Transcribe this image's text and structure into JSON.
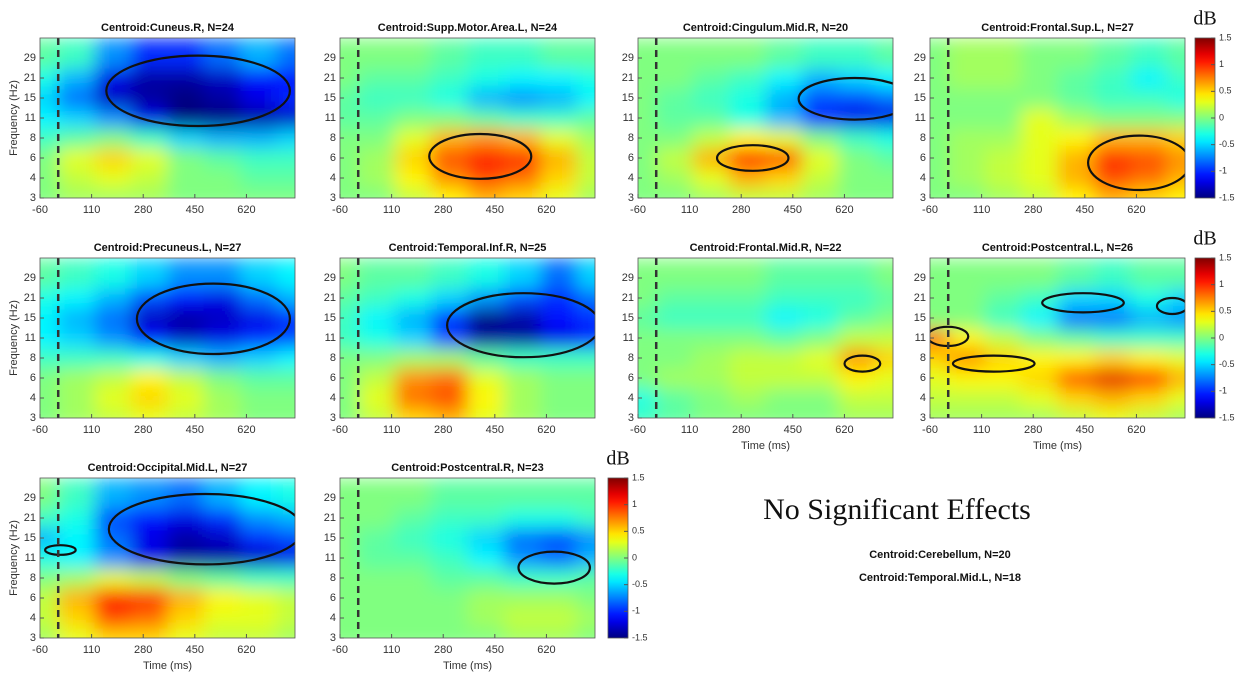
{
  "chart_data": [
    {
      "type": "heatmap",
      "title": "Centroid:Cuneus.R, N=24",
      "ylabel": "Frequency (Hz)",
      "x": [
        -60,
        60,
        180,
        300,
        420,
        540,
        660,
        780
      ],
      "y": [
        3,
        4,
        6,
        8,
        11,
        15,
        21,
        29
      ],
      "xlim": [
        -60,
        780
      ],
      "xticks": [
        -60,
        110,
        280,
        450,
        620
      ],
      "values": [
        [
          0,
          0.1,
          0.1,
          0.1,
          0,
          0,
          0,
          0
        ],
        [
          0,
          0.2,
          0.3,
          0.2,
          0,
          0,
          -0.1,
          -0.1
        ],
        [
          0,
          0.3,
          0.5,
          0.3,
          0,
          -0.1,
          -0.2,
          -0.2
        ],
        [
          -0.2,
          -0.1,
          0,
          -0.2,
          -0.5,
          -0.6,
          -0.6,
          -0.5
        ],
        [
          -0.4,
          -0.5,
          -0.7,
          -1.2,
          -1.5,
          -1.5,
          -1.4,
          -1.3
        ],
        [
          -0.5,
          -0.8,
          -1.3,
          -1.4,
          -1.5,
          -1.4,
          -1.2,
          -1
        ],
        [
          -0.3,
          -0.6,
          -1.2,
          -1.4,
          -1.4,
          -1.3,
          -1.1,
          -1.1
        ],
        [
          -0.1,
          -0.2,
          -0.7,
          -1,
          -1,
          -0.8,
          -0.6,
          -0.8
        ]
      ]
    },
    {
      "type": "heatmap",
      "title": "Centroid:Supp.Motor.Area.L, N=24",
      "x": [
        -60,
        60,
        180,
        300,
        420,
        540,
        660,
        780
      ],
      "y": [
        3,
        4,
        6,
        8,
        11,
        15,
        21,
        29
      ],
      "xlim": [
        -60,
        780
      ],
      "xticks": [
        -60,
        110,
        280,
        450,
        620
      ],
      "values": [
        [
          0,
          0,
          0.2,
          0.4,
          0.6,
          0.5,
          0.3,
          0.1
        ],
        [
          0,
          0.1,
          0.4,
          0.7,
          0.9,
          0.8,
          0.5,
          0.2
        ],
        [
          0,
          0.1,
          0.5,
          0.9,
          1.1,
          1,
          0.6,
          0.2
        ],
        [
          0,
          0,
          0.3,
          0.6,
          0.7,
          0.6,
          0.3,
          0.1
        ],
        [
          -0.1,
          -0.1,
          0,
          0,
          -0.1,
          -0.2,
          -0.2,
          -0.1
        ],
        [
          -0.1,
          -0.2,
          -0.2,
          -0.3,
          -0.6,
          -0.7,
          -0.6,
          -0.4
        ],
        [
          0,
          -0.1,
          -0.1,
          -0.2,
          -0.3,
          -0.4,
          -0.4,
          -0.3
        ],
        [
          0,
          0,
          0,
          -0.1,
          -0.2,
          -0.2,
          -0.1,
          -0.1
        ]
      ]
    },
    {
      "type": "heatmap",
      "title": "Centroid:Cingulum.Mid.R, N=20",
      "x": [
        -60,
        60,
        180,
        300,
        420,
        540,
        660,
        780
      ],
      "y": [
        3,
        4,
        6,
        8,
        11,
        15,
        21,
        29
      ],
      "xlim": [
        -60,
        780
      ],
      "xticks": [
        -60,
        110,
        280,
        450,
        620
      ],
      "values": [
        [
          0,
          0,
          0.1,
          0.2,
          0.2,
          0.1,
          0,
          0
        ],
        [
          0,
          0.1,
          0.3,
          0.6,
          0.5,
          0.2,
          0,
          0
        ],
        [
          0,
          0.2,
          0.6,
          1.1,
          0.9,
          0.3,
          0,
          -0.1
        ],
        [
          0,
          0,
          0.2,
          0.4,
          0.3,
          0,
          -0.2,
          -0.3
        ],
        [
          0,
          -0.1,
          -0.1,
          -0.3,
          -0.6,
          -1,
          -1.2,
          -1.2
        ],
        [
          0,
          -0.1,
          -0.2,
          -0.3,
          -0.6,
          -0.9,
          -0.9,
          -0.8
        ],
        [
          0,
          0,
          -0.1,
          -0.2,
          -0.4,
          -0.6,
          -0.5,
          -0.4
        ],
        [
          0,
          0,
          0,
          0,
          -0.1,
          -0.2,
          -0.2,
          -0.1
        ]
      ]
    },
    {
      "type": "heatmap",
      "title": "Centroid:Frontal.Sup.L, N=27",
      "x": [
        -60,
        60,
        180,
        300,
        420,
        540,
        660,
        780
      ],
      "y": [
        3,
        4,
        6,
        8,
        11,
        15,
        21,
        29
      ],
      "xlim": [
        -60,
        780
      ],
      "xticks": [
        -60,
        110,
        280,
        450,
        620
      ],
      "values": [
        [
          0,
          0,
          0.1,
          0.2,
          0.4,
          0.6,
          0.5,
          0.4
        ],
        [
          0,
          0.1,
          0.2,
          0.3,
          0.6,
          0.9,
          0.8,
          0.6
        ],
        [
          0,
          0.1,
          0.2,
          0.3,
          0.6,
          1,
          0.9,
          0.7
        ],
        [
          0,
          0.1,
          0.1,
          0.3,
          0.4,
          0.6,
          0.6,
          0.5
        ],
        [
          0,
          0,
          0,
          0.3,
          0.1,
          0,
          0,
          0
        ],
        [
          0,
          0,
          0,
          0,
          -0.1,
          -0.2,
          -0.2,
          -0.3
        ],
        [
          0,
          0.1,
          0.1,
          0,
          -0.1,
          -0.2,
          -0.4,
          -0.2
        ],
        [
          0,
          0.1,
          0.1,
          0,
          0,
          -0.1,
          -0.2,
          -0.1
        ]
      ]
    },
    {
      "type": "heatmap",
      "title": "Centroid:Precuneus.L, N=27",
      "ylabel": "Frequency (Hz)",
      "x": [
        -60,
        60,
        180,
        300,
        420,
        540,
        660,
        780
      ],
      "y": [
        3,
        4,
        6,
        8,
        11,
        15,
        21,
        29
      ],
      "xlim": [
        -60,
        780
      ],
      "xticks": [
        -60,
        110,
        280,
        450,
        620
      ],
      "values": [
        [
          0,
          0.1,
          0.2,
          0.3,
          0.2,
          0.1,
          0,
          0
        ],
        [
          0,
          0.1,
          0.3,
          0.5,
          0.3,
          0.1,
          0,
          0
        ],
        [
          0,
          0.1,
          0.2,
          0.4,
          0.2,
          0,
          -0.1,
          -0.1
        ],
        [
          -0.2,
          -0.2,
          -0.2,
          -0.3,
          -0.5,
          -0.6,
          -0.5,
          -0.4
        ],
        [
          -0.4,
          -0.5,
          -0.7,
          -1.1,
          -1.3,
          -1.2,
          -1,
          -0.9
        ],
        [
          -0.4,
          -0.6,
          -0.8,
          -1.3,
          -1.4,
          -1.3,
          -1.2,
          -1
        ],
        [
          -0.3,
          -0.4,
          -0.6,
          -0.9,
          -1.1,
          -1.2,
          -0.8,
          -0.6
        ],
        [
          -0.1,
          -0.2,
          -0.3,
          -0.5,
          -0.7,
          -0.7,
          -0.5,
          -0.4
        ]
      ]
    },
    {
      "type": "heatmap",
      "title": "Centroid:Temporal.Inf.R, N=25",
      "x": [
        -60,
        60,
        180,
        300,
        420,
        540,
        660,
        780
      ],
      "y": [
        3,
        4,
        6,
        8,
        11,
        15,
        21,
        29
      ],
      "xlim": [
        -60,
        780
      ],
      "xticks": [
        -60,
        110,
        280,
        450,
        620
      ],
      "values": [
        [
          0,
          0.2,
          0.5,
          0.6,
          0.3,
          0.1,
          0,
          0
        ],
        [
          0,
          0.3,
          0.8,
          0.9,
          0.4,
          0.1,
          0,
          0
        ],
        [
          0,
          0.2,
          0.7,
          0.8,
          0.3,
          0.1,
          0,
          0
        ],
        [
          0,
          0,
          0.1,
          0.1,
          -0.1,
          -0.2,
          -0.2,
          -0.2
        ],
        [
          -0.2,
          -0.3,
          -0.5,
          -0.9,
          -1.4,
          -1.4,
          -1.2,
          -1
        ],
        [
          -0.2,
          -0.4,
          -0.6,
          -1,
          -1.5,
          -1.4,
          -1.1,
          -1
        ],
        [
          -0.1,
          -0.2,
          -0.3,
          -0.5,
          -0.7,
          -0.9,
          -1,
          -0.8
        ],
        [
          0,
          -0.1,
          -0.1,
          -0.2,
          -0.3,
          -0.5,
          -0.8,
          -0.5
        ]
      ]
    },
    {
      "type": "heatmap",
      "title": "Centroid:Frontal.Mid.R, N=22",
      "xlabel": "Time (ms)",
      "x": [
        -60,
        60,
        180,
        300,
        420,
        540,
        660,
        780
      ],
      "y": [
        3,
        4,
        6,
        8,
        11,
        15,
        21,
        29
      ],
      "xlim": [
        -60,
        780
      ],
      "xticks": [
        -60,
        110,
        280,
        450,
        620
      ],
      "values": [
        [
          -0.2,
          -0.1,
          0,
          0,
          0,
          0,
          0.1,
          0.1
        ],
        [
          -0.3,
          -0.1,
          0,
          0.1,
          0,
          0,
          0.2,
          0.2
        ],
        [
          0,
          0.1,
          0.1,
          0.2,
          0.2,
          0.2,
          0.4,
          0.3
        ],
        [
          0,
          0,
          0.1,
          0.2,
          0.2,
          0.3,
          0.7,
          0.5
        ],
        [
          0,
          0,
          0,
          0,
          -0.1,
          0,
          0.2,
          0.2
        ],
        [
          -0.1,
          -0.2,
          -0.2,
          -0.2,
          -0.4,
          -0.3,
          -0.1,
          0
        ],
        [
          0,
          -0.1,
          -0.1,
          -0.1,
          -0.2,
          -0.2,
          -0.2,
          -0.1
        ],
        [
          0,
          0,
          0,
          0,
          -0.1,
          -0.1,
          -0.1,
          0
        ]
      ]
    },
    {
      "type": "heatmap",
      "title": "Centroid:Postcentral.L, N=26",
      "xlabel": "Time (ms)",
      "x": [
        -60,
        60,
        180,
        300,
        420,
        540,
        660,
        780
      ],
      "y": [
        3,
        4,
        6,
        8,
        11,
        15,
        21,
        29
      ],
      "xlim": [
        -60,
        780
      ],
      "xticks": [
        -60,
        110,
        280,
        450,
        620
      ],
      "values": [
        [
          0.1,
          0.1,
          0.1,
          0.1,
          0.2,
          0.3,
          0.2,
          0.1
        ],
        [
          0.2,
          0.2,
          0.2,
          0.3,
          0.5,
          0.6,
          0.5,
          0.3
        ],
        [
          0.3,
          0.4,
          0.4,
          0.5,
          0.9,
          1.2,
          1,
          0.6
        ],
        [
          0.5,
          0.7,
          0.5,
          0.4,
          0.4,
          0.5,
          0.4,
          0.3
        ],
        [
          0.8,
          0.4,
          0.2,
          0,
          -0.1,
          -0.2,
          -0.2,
          -0.2
        ],
        [
          0,
          0,
          -0.2,
          -0.4,
          -0.8,
          -0.8,
          -0.6,
          -0.7
        ],
        [
          0,
          0,
          -0.1,
          -0.2,
          -0.5,
          -0.5,
          -0.3,
          -0.5
        ],
        [
          0,
          0,
          0,
          0,
          -0.1,
          -0.2,
          -0.1,
          -0.1
        ]
      ]
    },
    {
      "type": "heatmap",
      "title": "Centroid:Occipital.Mid.L, N=27",
      "ylabel": "Frequency (Hz)",
      "xlabel": "Time (ms)",
      "x": [
        -60,
        60,
        180,
        300,
        420,
        540,
        660,
        780
      ],
      "y": [
        3,
        4,
        6,
        8,
        11,
        15,
        21,
        29
      ],
      "xlim": [
        -60,
        780
      ],
      "xticks": [
        -60,
        110,
        280,
        450,
        620
      ],
      "values": [
        [
          0.1,
          0.3,
          0.5,
          0.5,
          0.3,
          0.2,
          0.2,
          0.1
        ],
        [
          0.2,
          0.5,
          0.9,
          0.8,
          0.5,
          0.3,
          0.3,
          0.2
        ],
        [
          0.2,
          0.6,
          1.1,
          1,
          0.6,
          0.4,
          0.3,
          0.2
        ],
        [
          0,
          0.1,
          0.3,
          0.2,
          0,
          -0.1,
          -0.2,
          -0.2
        ],
        [
          -0.3,
          -0.4,
          -0.7,
          -1.2,
          -1.4,
          -1.4,
          -1.3,
          -1.2
        ],
        [
          -0.6,
          -0.4,
          -0.8,
          -1.2,
          -1.4,
          -1.3,
          -1,
          -0.9
        ],
        [
          -0.2,
          -0.3,
          -0.9,
          -1.1,
          -1.2,
          -1,
          -0.7,
          -0.6
        ],
        [
          0,
          -0.2,
          -0.6,
          -0.7,
          -0.8,
          -0.6,
          -0.4,
          -0.3
        ]
      ]
    },
    {
      "type": "heatmap",
      "title": "Centroid:Postcentral.R, N=23",
      "xlabel": "Time (ms)",
      "x": [
        -60,
        60,
        180,
        300,
        420,
        540,
        660,
        780
      ],
      "y": [
        3,
        4,
        6,
        8,
        11,
        15,
        21,
        29
      ],
      "xlim": [
        -60,
        780
      ],
      "xticks": [
        -60,
        110,
        280,
        450,
        620
      ],
      "values": [
        [
          0,
          0,
          0,
          0,
          0,
          0.1,
          0.1,
          0
        ],
        [
          0,
          0,
          0,
          0,
          0.1,
          0.2,
          0.2,
          0.1
        ],
        [
          0,
          0,
          0,
          0,
          0.1,
          0.1,
          0.1,
          0
        ],
        [
          0,
          0,
          0,
          -0.1,
          -0.1,
          -0.2,
          -0.2,
          -0.1
        ],
        [
          0,
          -0.1,
          -0.1,
          -0.2,
          -0.4,
          -0.7,
          -0.8,
          -0.6
        ],
        [
          0,
          -0.1,
          -0.2,
          -0.3,
          -0.5,
          -0.8,
          -0.9,
          -0.7
        ],
        [
          0,
          0,
          -0.1,
          -0.2,
          -0.2,
          -0.3,
          -0.3,
          -0.2
        ],
        [
          0,
          0,
          0,
          -0.1,
          -0.1,
          -0.1,
          -0.1,
          -0.1
        ]
      ]
    }
  ],
  "colorbar": {
    "label": "dB",
    "lim": [
      -1.5,
      1.5
    ],
    "ticks": [
      1.5,
      1,
      0.5,
      0,
      -0.5,
      -1,
      -1.5
    ]
  },
  "note": {
    "title": "No Significant Effects",
    "items": [
      "Centroid:Cerebellum, N=20",
      "Centroid:Temporal.Mid.L, N=18"
    ]
  }
}
